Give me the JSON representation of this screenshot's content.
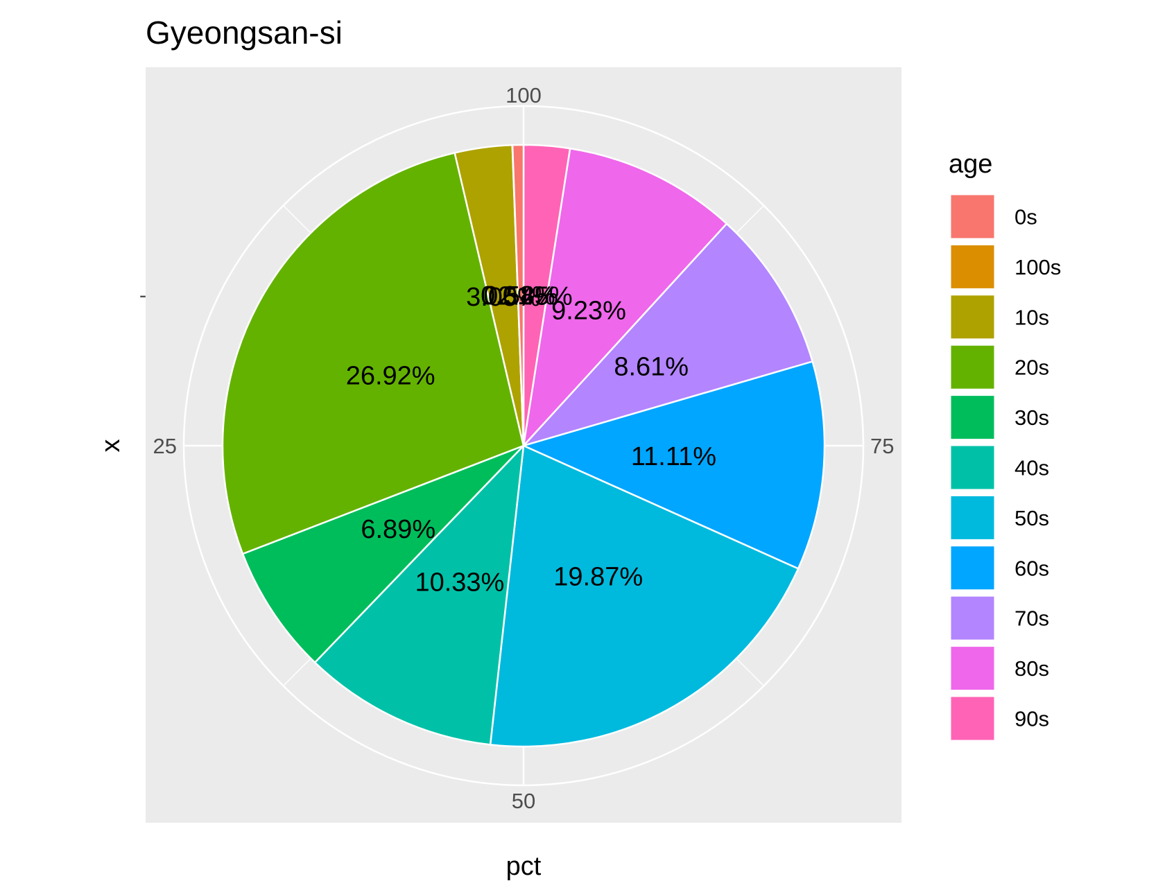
{
  "chart_data": {
    "type": "pie",
    "title": "Gyeongsan-si",
    "xlabel": "pct",
    "ylabel": "x",
    "y_tick_labels": [
      "-"
    ],
    "angle_ticks": [
      {
        "value": 100,
        "label": "100"
      },
      {
        "value": 25,
        "label": "25"
      },
      {
        "value": 50,
        "label": "50"
      },
      {
        "value": 75,
        "label": "75"
      }
    ],
    "legend": {
      "title": "age",
      "position": "right"
    },
    "grid": true,
    "slices": [
      {
        "category": "0s",
        "value": 0.58,
        "label": "0.58%",
        "color": "#F8766D"
      },
      {
        "category": "100s",
        "value": 0.01,
        "label": "0.01%",
        "color": "#DB8E00"
      },
      {
        "category": "10s",
        "value": 3.05,
        "label": "3.05%",
        "color": "#AEA200"
      },
      {
        "category": "20s",
        "value": 26.92,
        "label": "26.92%",
        "color": "#64B200"
      },
      {
        "category": "30s",
        "value": 6.89,
        "label": "6.89%",
        "color": "#00BD5C"
      },
      {
        "category": "40s",
        "value": 10.33,
        "label": "10.33%",
        "color": "#00C1A7"
      },
      {
        "category": "50s",
        "value": 19.87,
        "label": "19.87%",
        "color": "#00BADE"
      },
      {
        "category": "60s",
        "value": 11.11,
        "label": "11.11%",
        "color": "#00A6FF"
      },
      {
        "category": "70s",
        "value": 8.61,
        "label": "8.61%",
        "color": "#B385FF"
      },
      {
        "category": "80s",
        "value": 9.23,
        "label": "9.23%",
        "color": "#EF67EB"
      },
      {
        "category": "90s",
        "value": 2.45,
        "label": "2.45%",
        "color": "#FF63B6"
      }
    ]
  }
}
